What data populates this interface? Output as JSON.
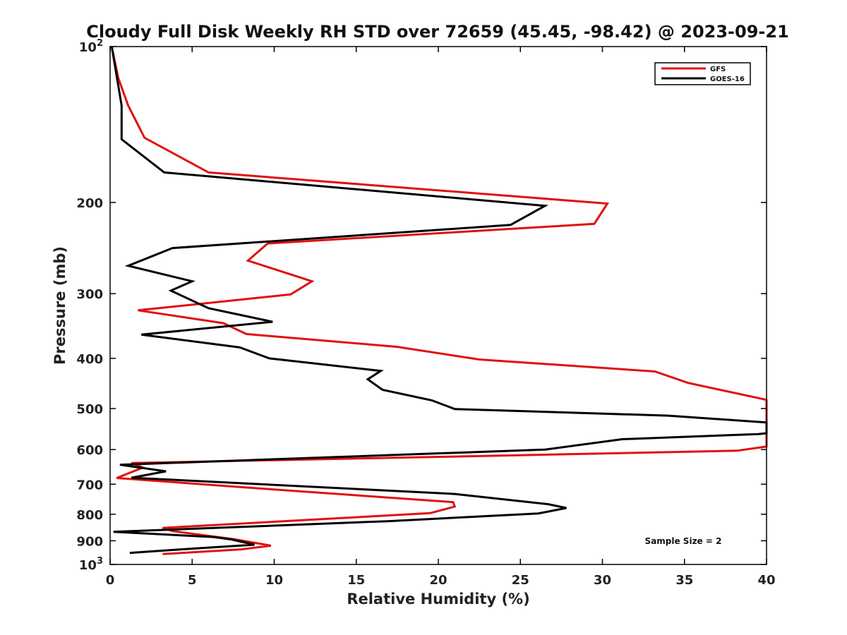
{
  "chart_data": {
    "type": "line",
    "title": "Cloudy Full Disk Weekly RH STD over 72659 (45.45, -98.42) @ 2023-09-21",
    "xlabel": "Relative Humidity (%)",
    "ylabel": "Pressure (mb)",
    "xlim": [
      0,
      40
    ],
    "ylim": [
      1000,
      100
    ],
    "yscale": "log",
    "grid": false,
    "legend_position": "top-right",
    "x_ticks": [
      {
        "value": 0,
        "label": "0"
      },
      {
        "value": 5,
        "label": "5"
      },
      {
        "value": 10,
        "label": "10"
      },
      {
        "value": 15,
        "label": "15"
      },
      {
        "value": 20,
        "label": "20"
      },
      {
        "value": 25,
        "label": "25"
      },
      {
        "value": 30,
        "label": "30"
      },
      {
        "value": 35,
        "label": "35"
      },
      {
        "value": 40,
        "label": "40"
      }
    ],
    "y_ticks": [
      {
        "value": 100,
        "base": "10",
        "exp": "2"
      },
      {
        "value": 200,
        "label": "200"
      },
      {
        "value": 300,
        "label": "300"
      },
      {
        "value": 400,
        "label": "400"
      },
      {
        "value": 500,
        "label": "500"
      },
      {
        "value": 600,
        "label": "600"
      },
      {
        "value": 700,
        "label": "700"
      },
      {
        "value": 800,
        "label": "800"
      },
      {
        "value": 900,
        "label": "900"
      },
      {
        "value": 1000,
        "base": "10",
        "exp": "3"
      }
    ],
    "series": [
      {
        "name": "GFS",
        "color": "#e01010",
        "points": [
          [
            0.1,
            100
          ],
          [
            0.5,
            115
          ],
          [
            1.1,
            130
          ],
          [
            2.1,
            150
          ],
          [
            6.0,
            175
          ],
          [
            30.3,
            201
          ],
          [
            29.5,
            220
          ],
          [
            9.6,
            240
          ],
          [
            8.4,
            259
          ],
          [
            12.3,
            284
          ],
          [
            11.0,
            301
          ],
          [
            1.7,
            323
          ],
          [
            6.9,
            342
          ],
          [
            8.3,
            359
          ],
          [
            17.5,
            380
          ],
          [
            22.5,
            402
          ],
          [
            33.2,
            424
          ],
          [
            35.2,
            446
          ],
          [
            40,
            481
          ],
          [
            40,
            592
          ],
          [
            38.2,
            603
          ],
          [
            21.0,
            619
          ],
          [
            1.3,
            637
          ],
          [
            2.0,
            650
          ],
          [
            0.4,
            681
          ],
          [
            9.6,
            715
          ],
          [
            20.9,
            758
          ],
          [
            21.0,
            773
          ],
          [
            19.5,
            796
          ],
          [
            3.2,
            850
          ],
          [
            3.8,
            862
          ],
          [
            7.6,
            894
          ],
          [
            9.8,
            920
          ],
          [
            8.0,
            935
          ],
          [
            3.2,
            955
          ]
        ]
      },
      {
        "name": "GOES-16",
        "color": "#000000",
        "points": [
          [
            0.1,
            100
          ],
          [
            0.7,
            130
          ],
          [
            0.7,
            151
          ],
          [
            3.3,
            175
          ],
          [
            26.5,
            203
          ],
          [
            24.4,
            221
          ],
          [
            3.8,
            245
          ],
          [
            1.1,
            265
          ],
          [
            5.0,
            284
          ],
          [
            3.7,
            296
          ],
          [
            6.0,
            320
          ],
          [
            9.9,
            340
          ],
          [
            1.9,
            360
          ],
          [
            7.9,
            381
          ],
          [
            9.7,
            400
          ],
          [
            16.5,
            423
          ],
          [
            15.7,
            439
          ],
          [
            16.6,
            460
          ],
          [
            19.6,
            482
          ],
          [
            21.0,
            501
          ],
          [
            34.0,
            516
          ],
          [
            40,
            532
          ],
          [
            40,
            558
          ],
          [
            39.5,
            560
          ],
          [
            31.2,
            573
          ],
          [
            26.5,
            600
          ],
          [
            0.6,
            642
          ],
          [
            3.4,
            661
          ],
          [
            1.3,
            680
          ],
          [
            21.0,
            731
          ],
          [
            26.7,
            765
          ],
          [
            27.8,
            778
          ],
          [
            26.1,
            797
          ],
          [
            16.9,
            825
          ],
          [
            0.2,
            865
          ],
          [
            6.3,
            885
          ],
          [
            7.4,
            895
          ],
          [
            8.8,
            916
          ],
          [
            5.0,
            932
          ],
          [
            1.2,
            950
          ]
        ]
      }
    ],
    "legend": [
      {
        "label": "GFS",
        "color": "#e01010"
      },
      {
        "label": "GOES-16",
        "color": "#000000"
      }
    ],
    "annotations": [
      {
        "text": "Sample Size = 2"
      }
    ]
  }
}
